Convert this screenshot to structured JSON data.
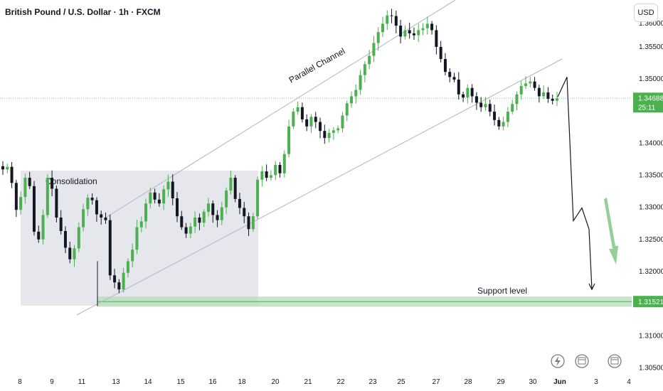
{
  "header": {
    "title": "British Pound / U.S. Dollar · 1h · FXCM",
    "currency_button": "USD"
  },
  "price_axis": {
    "top_partial_label": "1.36000",
    "ticks": [
      "1.35500",
      "1.35000",
      "1.34000",
      "1.33500",
      "1.33000",
      "1.32500",
      "1.32000",
      "1.31000",
      "1.30500"
    ]
  },
  "time_axis": {
    "ticks": [
      "8",
      "9",
      "11",
      "13",
      "14",
      "15",
      "16",
      "18",
      "20",
      "21",
      "22",
      "23",
      "25",
      "27",
      "28",
      "29",
      "30",
      "Jun",
      "3",
      "4"
    ]
  },
  "price_badges": {
    "current_price": "1.34688",
    "countdown": "25:11",
    "support_price": "1.31521"
  },
  "annotations": {
    "consolidation": "Consolidation",
    "channel": "Parallel Channel",
    "support": "Support level"
  },
  "colors": {
    "bull": "#26a69a",
    "bear": "#131722",
    "bull_body": "#4caf50",
    "consolidation_box": "#d1d4dc",
    "support_zone": "#b9dfbf",
    "channel_line": "#b2b5be",
    "current_price_badge": "#4caf50",
    "support_badge": "#4caf50",
    "arrow_green": "#66bb6a"
  },
  "footer_icons": [
    "lightning-icon",
    "calendar-flag-icon",
    "calendar-flag-icon"
  ],
  "chart_data": {
    "type": "candlestick",
    "symbol": "GBPUSD",
    "timeframe": "1h",
    "ylim": [
      1.3046,
      1.3622
    ],
    "current_price": 1.34688,
    "support_level": 1.31521,
    "close_path": [
      1.3358,
      1.3362,
      1.3337,
      1.3295,
      1.3315,
      1.3345,
      1.3332,
      1.3261,
      1.3249,
      1.3287,
      1.3345,
      1.3328,
      1.3283,
      1.3262,
      1.3236,
      1.3218,
      1.3235,
      1.3268,
      1.3296,
      1.3314,
      1.331,
      1.3288,
      1.3283,
      1.3279,
      1.3193,
      1.3182,
      1.3171,
      1.3197,
      1.3215,
      1.3233,
      1.3268,
      1.3277,
      1.3305,
      1.3322,
      1.3311,
      1.3305,
      1.3327,
      1.3339,
      1.3313,
      1.3285,
      1.3268,
      1.3258,
      1.3269,
      1.3283,
      1.3275,
      1.3292,
      1.3305,
      1.3287,
      1.3279,
      1.3299,
      1.3325,
      1.3345,
      1.3312,
      1.3298,
      1.3285,
      1.3265,
      1.3285,
      1.3342,
      1.3355,
      1.3345,
      1.3349,
      1.3365,
      1.3352,
      1.3382,
      1.3425,
      1.3448,
      1.3455,
      1.3436,
      1.3425,
      1.344,
      1.3432,
      1.3418,
      1.3407,
      1.3415,
      1.3419,
      1.3422,
      1.3442,
      1.3461,
      1.3472,
      1.3482,
      1.3505,
      1.3522,
      1.3535,
      1.3555,
      1.3572,
      1.3585,
      1.3598,
      1.3597,
      1.3582,
      1.3565,
      1.3575,
      1.357,
      1.3567,
      1.3575,
      1.3578,
      1.3585,
      1.3575,
      1.3549,
      1.353,
      1.351,
      1.3502,
      1.3498,
      1.3475,
      1.347,
      1.3485,
      1.3472,
      1.3462,
      1.3455,
      1.346,
      1.3448,
      1.3435,
      1.3425,
      1.3432,
      1.3448,
      1.346,
      1.3475,
      1.3488,
      1.3492,
      1.3495,
      1.3485,
      1.3472,
      1.3478,
      1.3468,
      1.3465,
      1.34688
    ],
    "projection_path": [
      1.3471,
      1.3502,
      1.3278,
      1.3298,
      1.3265,
      1.3292,
      1.3171
    ],
    "annotations": [
      "Consolidation",
      "Parallel Channel",
      "Support level"
    ]
  }
}
